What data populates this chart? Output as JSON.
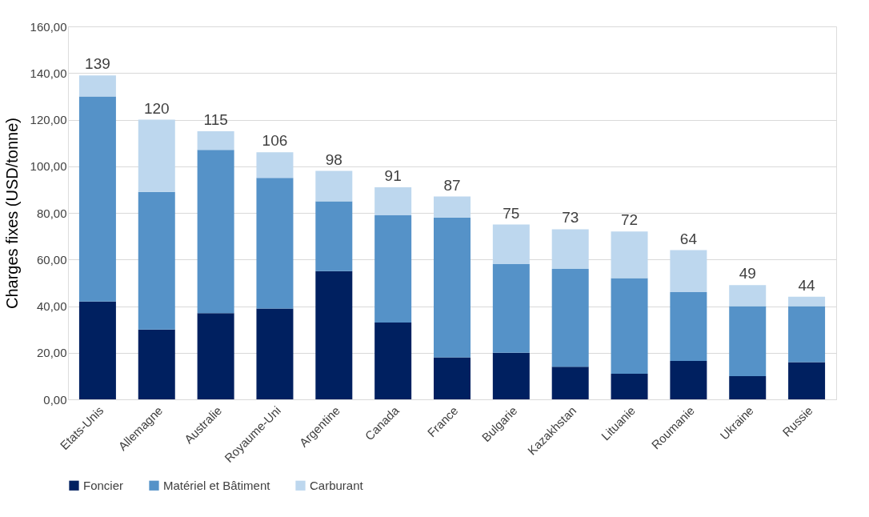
{
  "chart_data": {
    "type": "bar",
    "stacked": true,
    "ylabel": "Charges fixes (USD/tonne)",
    "categories": [
      "Etats-Unis",
      "Allemagne",
      "Australie",
      "Royaume-Uni",
      "Argentine",
      "Canada",
      "France",
      "Bulgarie",
      "Kazakhstan",
      "Lituanie",
      "Roumanie",
      "Ukraine",
      "Russie"
    ],
    "series": [
      {
        "name": "Foncier",
        "color": "#002060",
        "values": [
          42,
          30,
          37,
          39,
          55,
          33,
          18,
          20,
          14,
          11,
          16.5,
          10,
          16
        ]
      },
      {
        "name": "Matériel et Bâtiment",
        "color": "#5592c8",
        "values": [
          88,
          59,
          70,
          56,
          30,
          46,
          60,
          38,
          42,
          41,
          29.5,
          30,
          24
        ]
      },
      {
        "name": "Carburant",
        "color": "#bdd7ee",
        "values": [
          9,
          31,
          8,
          11,
          13,
          12,
          9,
          17,
          17,
          20,
          18,
          9,
          4
        ]
      }
    ],
    "totals": [
      "139",
      "120",
      "115",
      "106",
      "98",
      "91",
      "87",
      "75",
      "73",
      "72",
      "64",
      "49",
      "44"
    ],
    "ylim": [
      0,
      160
    ],
    "yticks": [
      {
        "value": 0,
        "label": "0,00"
      },
      {
        "value": 20,
        "label": "20,00"
      },
      {
        "value": 40,
        "label": "40,00"
      },
      {
        "value": 60,
        "label": "60,00"
      },
      {
        "value": 80,
        "label": "80,00"
      },
      {
        "value": 100,
        "label": "100,00"
      },
      {
        "value": 120,
        "label": "120,00"
      },
      {
        "value": 140,
        "label": "140,00"
      },
      {
        "value": 160,
        "label": "160,00"
      }
    ],
    "grid": "y",
    "legend": "bottom"
  }
}
